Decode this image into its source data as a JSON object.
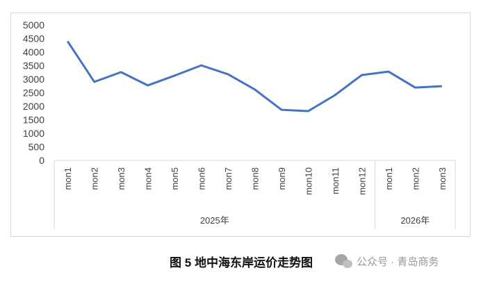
{
  "chart_data": {
    "type": "line",
    "groups": [
      {
        "name": "2025年",
        "categories": [
          "mon1",
          "mon2",
          "mon3",
          "mon4",
          "mon5",
          "mon6",
          "mon7",
          "mon8",
          "mon9",
          "mon10",
          "mon11",
          "mon12"
        ]
      },
      {
        "name": "2026年",
        "categories": [
          "mon1",
          "mon2",
          "mon3"
        ]
      }
    ],
    "values": [
      4400,
      2900,
      3260,
      2770,
      3130,
      3510,
      3180,
      2620,
      1870,
      1820,
      2410,
      3150,
      3280,
      2690,
      2740
    ],
    "color": "#4472c4",
    "ylim": [
      0,
      5000
    ],
    "yticks": [
      0,
      500,
      1000,
      1500,
      2000,
      2500,
      3000,
      3500,
      4000,
      4500,
      5000
    ]
  },
  "caption": "图 5  地中海东岸运价走势图",
  "watermark": "公众号 · 青岛商务"
}
